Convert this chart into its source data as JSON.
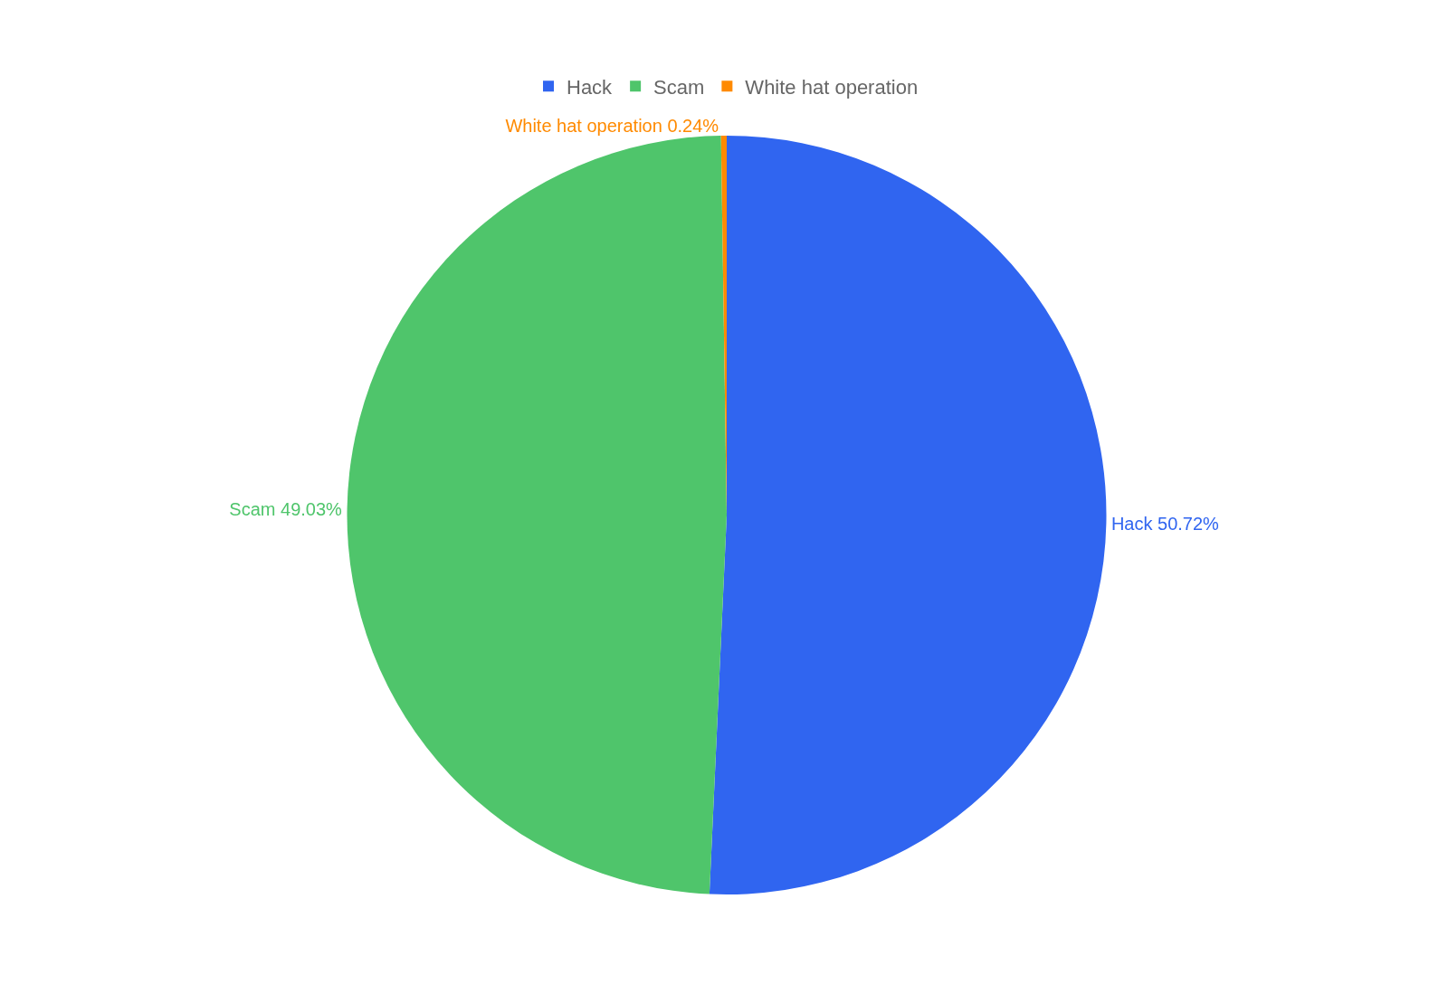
{
  "chart_data": {
    "type": "pie",
    "categories": [
      "Hack",
      "Scam",
      "White hat operation"
    ],
    "values": [
      50.72,
      49.03,
      0.24
    ],
    "colors": [
      "#3065f0",
      "#4fc56b",
      "#ff8a00"
    ],
    "value_labels": [
      "Hack 50.72%",
      "Scam 49.03%",
      "White hat operation 0.24%"
    ],
    "legend": "top"
  }
}
